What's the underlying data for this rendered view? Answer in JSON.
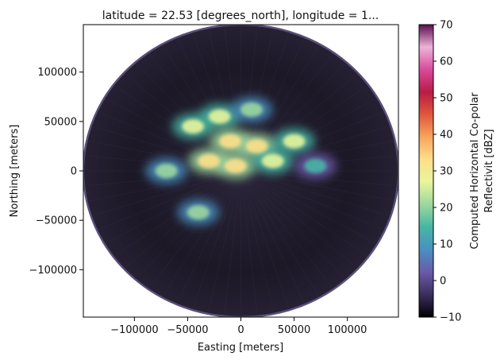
{
  "chart_data": {
    "type": "heatmap",
    "title": "latitude = 22.53 [degrees_north], longitude = 1...",
    "xlabel": "Easting [meters]",
    "ylabel": "Northing [meters]",
    "xlim": [
      -148000,
      148000
    ],
    "ylim": [
      -148000,
      148000
    ],
    "x_ticks": [
      -100000,
      -50000,
      0,
      50000,
      100000
    ],
    "x_tick_labels": [
      "−100000",
      "−50000",
      "0",
      "50000",
      "100000"
    ],
    "y_ticks": [
      -100000,
      -50000,
      0,
      50000,
      100000
    ],
    "y_tick_labels": [
      "−100000",
      "−50000",
      "0",
      "50000",
      "100000"
    ],
    "colorbar": {
      "label_line1": "Computed Horizontal Co-polar",
      "label_line2": "Reflectivit [dBZ]",
      "range": [
        -10,
        70
      ],
      "ticks": [
        -10,
        0,
        10,
        20,
        30,
        40,
        50,
        60,
        70
      ],
      "tick_labels": [
        "−10",
        "0",
        "10",
        "20",
        "30",
        "40",
        "50",
        "60",
        "70"
      ],
      "colormap": "Spectral_r",
      "stops": [
        "#000004",
        "#3b2f5c",
        "#6b5aa8",
        "#4a8fc0",
        "#46b6a4",
        "#9cd79e",
        "#e8f59c",
        "#fde08a",
        "#f7a55e",
        "#e0583c",
        "#b81c46",
        "#d94a9b",
        "#ecb3d8",
        "#5b0d50"
      ]
    },
    "radar_range_m": 148000,
    "echoes": [
      {
        "x": -45000,
        "y": 45000,
        "value": 25
      },
      {
        "x": -20000,
        "y": 55000,
        "value": 28
      },
      {
        "x": 10000,
        "y": 62000,
        "value": 22
      },
      {
        "x": -10000,
        "y": 30000,
        "value": 30
      },
      {
        "x": 15000,
        "y": 25000,
        "value": 33
      },
      {
        "x": -30000,
        "y": 10000,
        "value": 30
      },
      {
        "x": -5000,
        "y": 5000,
        "value": 35
      },
      {
        "x": 30000,
        "y": 10000,
        "value": 28
      },
      {
        "x": 50000,
        "y": 30000,
        "value": 24
      },
      {
        "x": -70000,
        "y": 0,
        "value": 18
      },
      {
        "x": -40000,
        "y": -42000,
        "value": 22
      },
      {
        "x": 70000,
        "y": 5000,
        "value": 12
      }
    ]
  }
}
